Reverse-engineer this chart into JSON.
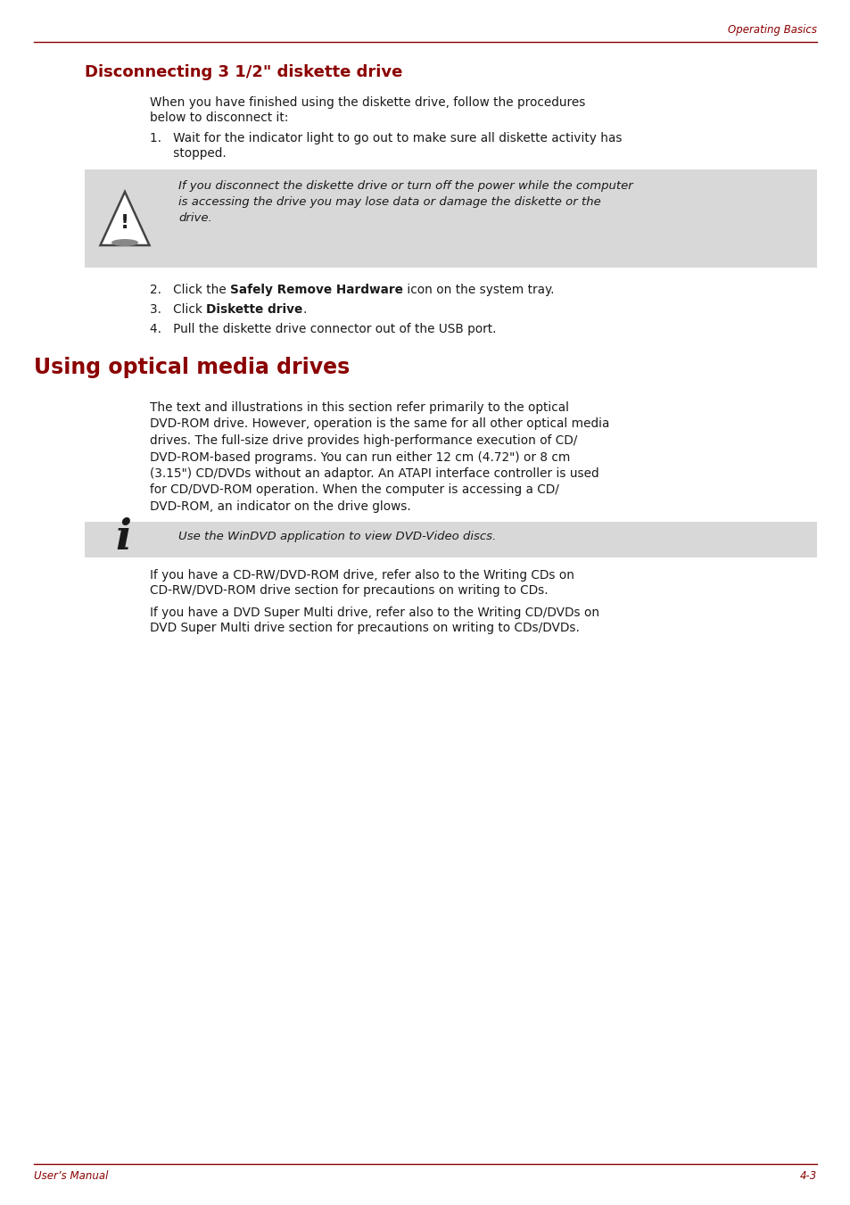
{
  "bg_color": "#ffffff",
  "dark_red": "#8B0000",
  "black": "#1a1a1a",
  "gray_box": "#D8D8D8",
  "header_right_text": "Operating Basics",
  "footer_left_text": "User’s Manual",
  "footer_right_text": "4-3",
  "section1_title": "Disconnecting 3 1/2\" diskette drive",
  "intro_text_line1": "When you have finished using the diskette drive, follow the procedures",
  "intro_text_line2": "below to disconnect it:",
  "step1_line1": "1.   Wait for the indicator light to go out to make sure all diskette activity has",
  "step1_line2": "      stopped.",
  "warn_line1": "If you disconnect the diskette drive or turn off the power while the computer",
  "warn_line2": "is accessing the drive you may lose data or damage the diskette or the",
  "warn_line3": "drive.",
  "step2_pre": "2.   Click the ",
  "step2_bold": "Safely Remove Hardware",
  "step2_post": " icon on the system tray.",
  "step3_pre": "3.   Click ",
  "step3_bold": "Diskette drive",
  "step3_post": ".",
  "step4": "4.   Pull the diskette drive connector out of the USB port.",
  "section2_title": "Using optical media drives",
  "body2_line1": "The text and illustrations in this section refer primarily to the optical",
  "body2_line2": "DVD-ROM drive. However, operation is the same for all other optical media",
  "body2_line3": "drives. The full-size drive provides high-performance execution of CD/",
  "body2_line4": "DVD-ROM-based programs. You can run either 12 cm (4.72\") or 8 cm",
  "body2_line5": "(3.15\") CD/DVDs without an adaptor. An ATAPI interface controller is used",
  "body2_line6": "for CD/DVD-ROM operation. When the computer is accessing a CD/",
  "body2_line7": "DVD-ROM, an indicator on the drive glows.",
  "note_text": "Use the WinDVD application to view DVD-Video discs.",
  "para1_line1": "If you have a CD-RW/DVD-ROM drive, refer also to the Writing CDs on",
  "para1_line2": "CD-RW/DVD-ROM drive section for precautions on writing to CDs.",
  "para2_line1": "If you have a DVD Super Multi drive, refer also to the Writing CD/DVDs on",
  "para2_line2": "DVD Super Multi drive section for precautions on writing to CDs/DVDs."
}
